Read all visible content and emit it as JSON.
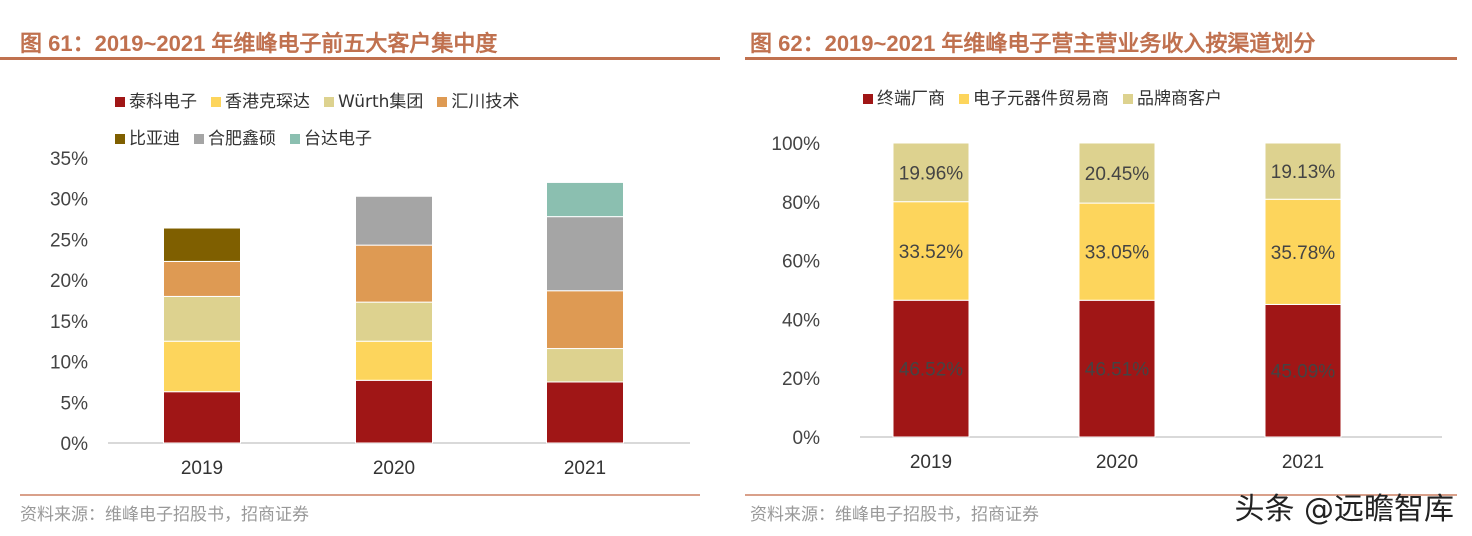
{
  "chart_data": [
    {
      "type": "bar",
      "stacked": true,
      "title": "图 61：2019~2021 年维峰电子前五大客户集中度",
      "categories": [
        "2019",
        "2020",
        "2021"
      ],
      "ylim": [
        0,
        35
      ],
      "yticks": [
        "0%",
        "5%",
        "10%",
        "15%",
        "20%",
        "25%",
        "30%",
        "35%"
      ],
      "legend_position": "top",
      "series": [
        {
          "name": "泰科电子",
          "color": "#a01616",
          "values": [
            6.3,
            7.7,
            7.5
          ]
        },
        {
          "name": "香港克琛达",
          "color": "#fdd55c",
          "values": [
            6.2,
            4.8,
            null
          ]
        },
        {
          "name": "Würth集团",
          "color": "#ddd28f",
          "values": [
            5.5,
            4.8,
            4.1
          ]
        },
        {
          "name": "汇川技术",
          "color": "#de9a53",
          "values": [
            4.3,
            7.0,
            7.1
          ]
        },
        {
          "name": "比亚迪",
          "color": "#7f5f00",
          "values": [
            4.1,
            null,
            null
          ]
        },
        {
          "name": "合肥鑫硕",
          "color": "#a5a5a5",
          "values": [
            null,
            6.0,
            9.1
          ]
        },
        {
          "name": "台达电子",
          "color": "#8bbfb0",
          "values": [
            null,
            null,
            4.2
          ]
        }
      ],
      "source": "资料来源：维峰电子招股书，招商证券"
    },
    {
      "type": "bar",
      "stacked": true,
      "title": "图 62：2019~2021 年维峰电子营主营业务收入按渠道划分",
      "categories": [
        "2019",
        "2020",
        "2021"
      ],
      "ylim": [
        0,
        100
      ],
      "yticks": [
        "0%",
        "20%",
        "40%",
        "60%",
        "80%",
        "100%"
      ],
      "legend_position": "top",
      "series": [
        {
          "name": "终端厂商",
          "color": "#a01616",
          "values": [
            46.52,
            46.51,
            45.09
          ],
          "labels": [
            "46.52%",
            "46.51%",
            "45.09%"
          ]
        },
        {
          "name": "电子元器件贸易商",
          "color": "#fdd55c",
          "values": [
            33.52,
            33.05,
            35.78
          ],
          "labels": [
            "33.52%",
            "33.05%",
            "35.78%"
          ]
        },
        {
          "name": "品牌商客户",
          "color": "#ddd28f",
          "values": [
            19.96,
            20.45,
            19.13
          ],
          "labels": [
            "19.96%",
            "20.45%",
            "19.13%"
          ]
        }
      ],
      "source": "资料来源：维峰电子招股书，招商证券"
    }
  ],
  "watermark": "头条 @远瞻智库"
}
